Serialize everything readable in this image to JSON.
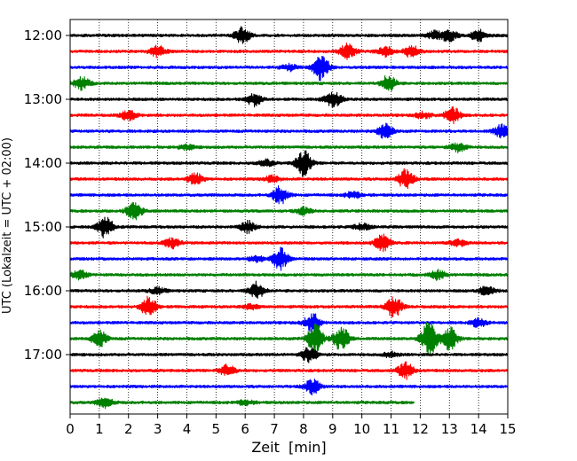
{
  "chart_data": {
    "type": "line",
    "title": "",
    "xlabel": "Zeit  [min]",
    "ylabel": "UTC (Lokalzeit = UTC + 02:00)",
    "xlim": [
      0,
      15
    ],
    "x_ticks": [
      0,
      1,
      2,
      3,
      4,
      5,
      6,
      7,
      8,
      9,
      10,
      11,
      12,
      13,
      14,
      15
    ],
    "x_tick_labels": [
      "0",
      "1",
      "2",
      "3",
      "4",
      "5",
      "6",
      "7",
      "8",
      "9",
      "10",
      "11",
      "12",
      "13",
      "14",
      "15"
    ],
    "y_tick_labels": [
      "12:00",
      "13:00",
      "14:00",
      "15:00",
      "16:00",
      "17:00"
    ],
    "x_grid": "dotted vertical lines at each minute",
    "trace_interval_min": 15,
    "trace_color_cycle": [
      "#000000",
      "#ff0000",
      "#0000ff",
      "#008000"
    ],
    "series": [
      {
        "start": "12:00",
        "end_min": 15,
        "events": [
          [
            5.9,
            1.0
          ],
          [
            13.0,
            0.7
          ],
          [
            14.0,
            0.7
          ],
          [
            12.5,
            0.5
          ]
        ]
      },
      {
        "start": "12:15",
        "end_min": 15,
        "events": [
          [
            3.0,
            0.7
          ],
          [
            9.5,
            0.9
          ],
          [
            10.8,
            0.6
          ],
          [
            11.7,
            0.7
          ]
        ]
      },
      {
        "start": "12:30",
        "end_min": 15,
        "events": [
          [
            8.6,
            1.6
          ],
          [
            7.5,
            0.4
          ]
        ]
      },
      {
        "start": "12:45",
        "end_min": 15,
        "events": [
          [
            0.4,
            0.8
          ],
          [
            10.9,
            1.0
          ]
        ]
      },
      {
        "start": "13:00",
        "end_min": 15,
        "events": [
          [
            6.3,
            0.8
          ],
          [
            9.1,
            0.6
          ],
          [
            8.9,
            0.4
          ]
        ]
      },
      {
        "start": "13:15",
        "end_min": 15,
        "events": [
          [
            2.0,
            0.6
          ],
          [
            13.1,
            1.0
          ],
          [
            12.1,
            0.4
          ]
        ]
      },
      {
        "start": "13:30",
        "end_min": 15,
        "events": [
          [
            10.8,
            0.9
          ],
          [
            14.8,
            0.8
          ]
        ]
      },
      {
        "start": "13:45",
        "end_min": 15,
        "events": [
          [
            13.3,
            0.6
          ],
          [
            4.0,
            0.3
          ]
        ]
      },
      {
        "start": "14:00",
        "end_min": 15,
        "events": [
          [
            8.0,
            1.6
          ],
          [
            6.7,
            0.4
          ]
        ]
      },
      {
        "start": "14:15",
        "end_min": 15,
        "events": [
          [
            4.3,
            0.7
          ],
          [
            11.5,
            1.2
          ],
          [
            6.9,
            0.4
          ]
        ]
      },
      {
        "start": "14:30",
        "end_min": 15,
        "events": [
          [
            7.2,
            1.1
          ],
          [
            9.7,
            0.4
          ]
        ]
      },
      {
        "start": "14:45",
        "end_min": 15,
        "events": [
          [
            2.2,
            1.1
          ],
          [
            8.0,
            0.4
          ]
        ]
      },
      {
        "start": "15:00",
        "end_min": 15,
        "events": [
          [
            1.2,
            1.3
          ],
          [
            6.1,
            0.7
          ],
          [
            10.0,
            0.4
          ]
        ]
      },
      {
        "start": "15:15",
        "end_min": 15,
        "events": [
          [
            3.5,
            0.6
          ],
          [
            10.7,
            1.0
          ],
          [
            13.3,
            0.4
          ]
        ]
      },
      {
        "start": "15:30",
        "end_min": 15,
        "events": [
          [
            7.2,
            1.3
          ],
          [
            6.4,
            0.4
          ]
        ]
      },
      {
        "start": "15:45",
        "end_min": 15,
        "events": [
          [
            0.3,
            0.6
          ],
          [
            12.6,
            0.6
          ]
        ]
      },
      {
        "start": "16:00",
        "end_min": 15,
        "events": [
          [
            6.4,
            1.1
          ],
          [
            14.3,
            0.6
          ],
          [
            3.0,
            0.4
          ]
        ]
      },
      {
        "start": "16:15",
        "end_min": 15,
        "events": [
          [
            2.7,
            1.2
          ],
          [
            11.1,
            1.3
          ],
          [
            6.2,
            0.3
          ]
        ]
      },
      {
        "start": "16:30",
        "end_min": 15,
        "events": [
          [
            8.3,
            1.2
          ],
          [
            14.0,
            0.5
          ]
        ]
      },
      {
        "start": "16:45",
        "end_min": 15,
        "events": [
          [
            1.0,
            1.0
          ],
          [
            8.4,
            2.0
          ],
          [
            9.3,
            1.6
          ],
          [
            12.3,
            2.2
          ],
          [
            13.0,
            1.5
          ]
        ]
      },
      {
        "start": "17:00",
        "end_min": 15,
        "events": [
          [
            8.2,
            0.9
          ],
          [
            11.0,
            0.3
          ]
        ]
      },
      {
        "start": "17:15",
        "end_min": 15,
        "events": [
          [
            5.4,
            0.7
          ],
          [
            11.5,
            1.0
          ]
        ]
      },
      {
        "start": "17:30",
        "end_min": 15,
        "events": [
          [
            8.3,
            0.9
          ]
        ]
      },
      {
        "start": "17:45",
        "end_min": 11.8,
        "events": [
          [
            1.2,
            0.6
          ],
          [
            6.0,
            0.3
          ]
        ]
      }
    ]
  }
}
